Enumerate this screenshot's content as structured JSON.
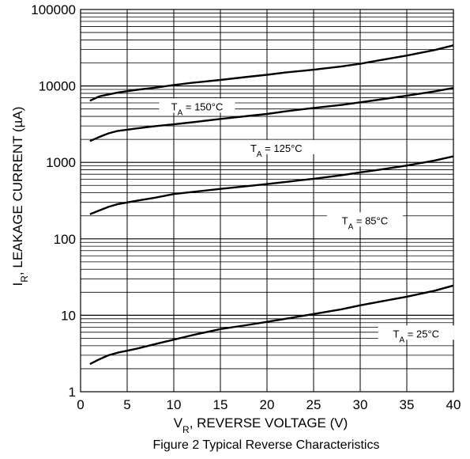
{
  "chart_data": {
    "type": "line",
    "title": "Figure 2 Typical Reverse Characteristics",
    "xlabel": {
      "main": "V",
      "sub": "R",
      "rest": ", REVERSE VOLTAGE (V)"
    },
    "ylabel": {
      "main": "I",
      "sub": "R",
      "rest": ", LEAKAGE CURRENT (µA)"
    },
    "xlim": [
      0,
      40
    ],
    "ylim": [
      1,
      100000
    ],
    "yscale": "log",
    "grid": true,
    "x_ticks": [
      "0",
      "5",
      "10",
      "15",
      "20",
      "25",
      "30",
      "35",
      "40"
    ],
    "y_ticks": [
      "1",
      "10",
      "100",
      "1000",
      "10000",
      "100000"
    ],
    "colors": {
      "line": "#000000",
      "grid": "#000000",
      "background": "#ffffff"
    },
    "series": [
      {
        "label": {
          "t": "T",
          "sub": "A",
          "rest": " = 150°C"
        },
        "x": [
          1,
          2,
          4,
          6,
          8,
          10,
          12,
          15,
          18,
          20,
          22,
          25,
          28,
          30,
          32,
          35,
          38,
          40
        ],
        "values": [
          6400,
          7300,
          8200,
          8900,
          9500,
          10300,
          11000,
          12000,
          13200,
          14000,
          15000,
          16300,
          18000,
          19500,
          21600,
          25000,
          29500,
          34000
        ]
      },
      {
        "label": {
          "t": "T",
          "sub": "A",
          "rest": " = 125°C"
        },
        "x": [
          1,
          2,
          3,
          4,
          6,
          8,
          10,
          12,
          15,
          18,
          20,
          22,
          25,
          28,
          30,
          32,
          35,
          38,
          40
        ],
        "values": [
          1900,
          2150,
          2400,
          2580,
          2780,
          2980,
          3150,
          3350,
          3700,
          4050,
          4300,
          4650,
          5150,
          5650,
          6100,
          6600,
          7450,
          8500,
          9400
        ]
      },
      {
        "label": {
          "t": "T",
          "sub": "A",
          "rest": " = 85°C"
        },
        "x": [
          1,
          2,
          3,
          4,
          6,
          8,
          10,
          12,
          15,
          18,
          20,
          22,
          25,
          28,
          30,
          32,
          35,
          38,
          40
        ],
        "values": [
          210,
          235,
          262,
          285,
          315,
          345,
          385,
          410,
          450,
          490,
          520,
          555,
          610,
          680,
          740,
          800,
          910,
          1060,
          1200
        ]
      },
      {
        "label": {
          "t": "T",
          "sub": "A",
          "rest": " = 25°C"
        },
        "x": [
          1,
          2,
          3,
          4,
          6,
          8,
          10,
          12,
          15,
          18,
          20,
          22,
          25,
          28,
          30,
          32,
          35,
          38,
          40
        ],
        "values": [
          2.3,
          2.65,
          3.0,
          3.25,
          3.65,
          4.2,
          4.8,
          5.5,
          6.6,
          7.5,
          8.2,
          9.0,
          10.4,
          12.0,
          13.5,
          15.0,
          17.5,
          21.0,
          24.5
        ]
      }
    ]
  }
}
